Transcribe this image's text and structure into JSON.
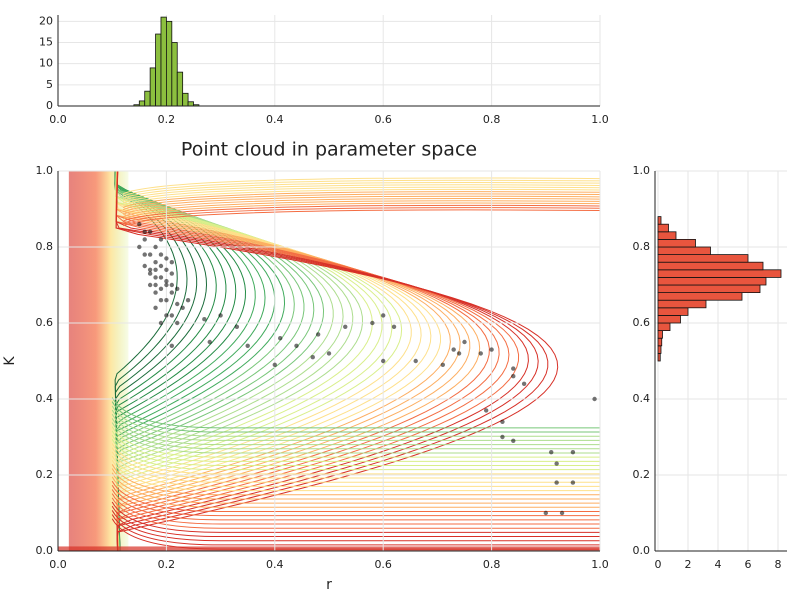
{
  "chart_data": [
    {
      "type": "histogram",
      "orientation": "vertical",
      "color": "#8cbf3f",
      "bins": [
        0.14,
        0.15,
        0.16,
        0.17,
        0.18,
        0.19,
        0.2,
        0.21,
        0.22,
        0.23,
        0.24,
        0.25,
        0.26
      ],
      "counts": [
        0.3,
        1.2,
        3.5,
        9,
        17,
        21,
        20,
        15,
        8,
        3,
        1,
        0.3
      ],
      "xlim": [
        0,
        1
      ],
      "xticks": [
        {
          "value": 0,
          "label": "0.0"
        },
        {
          "value": 0.2,
          "label": "0.2"
        },
        {
          "value": 0.4,
          "label": "0.4"
        },
        {
          "value": 0.6,
          "label": "0.6"
        },
        {
          "value": 0.8,
          "label": "0.8"
        },
        {
          "value": 1,
          "label": "1.0"
        }
      ],
      "ylim": [
        0,
        21.5
      ],
      "yticks": [
        0,
        5,
        10,
        15,
        20
      ],
      "grid": true
    },
    {
      "type": "scatter",
      "title": "Point cloud in parameter space",
      "xlabel": "r",
      "ylabel": "K",
      "color": "#000000",
      "x": [
        0.17,
        0.18,
        0.19,
        0.2,
        0.21,
        0.18,
        0.16,
        0.19,
        0.22,
        0.2,
        0.17,
        0.18,
        0.21,
        0.19,
        0.16,
        0.17,
        0.2,
        0.22,
        0.23,
        0.18,
        0.19,
        0.2,
        0.15,
        0.16,
        0.21,
        0.19,
        0.18,
        0.2,
        0.17,
        0.18,
        0.24,
        0.21,
        0.15,
        0.19,
        0.2,
        0.22,
        0.17,
        0.19,
        0.21,
        0.18,
        0.16,
        0.21,
        0.27,
        0.3,
        0.33,
        0.35,
        0.4,
        0.41,
        0.44,
        0.47,
        0.48,
        0.5,
        0.53,
        0.58,
        0.6,
        0.62,
        0.66,
        0.71,
        0.73,
        0.74,
        0.75,
        0.78,
        0.8,
        0.84,
        0.84,
        0.86,
        0.79,
        0.82,
        0.82,
        0.84,
        0.91,
        0.92,
        0.95,
        0.92,
        0.95,
        0.9,
        0.93,
        0.99,
        0.6,
        0.28
      ],
      "y": [
        0.74,
        0.76,
        0.72,
        0.7,
        0.68,
        0.8,
        0.78,
        0.66,
        0.65,
        0.74,
        0.7,
        0.68,
        0.73,
        0.78,
        0.82,
        0.84,
        0.62,
        0.6,
        0.64,
        0.72,
        0.75,
        0.77,
        0.8,
        0.75,
        0.7,
        0.69,
        0.64,
        0.66,
        0.78,
        0.74,
        0.66,
        0.62,
        0.86,
        0.82,
        0.71,
        0.69,
        0.73,
        0.6,
        0.76,
        0.7,
        0.84,
        0.54,
        0.61,
        0.62,
        0.59,
        0.54,
        0.49,
        0.56,
        0.54,
        0.51,
        0.57,
        0.52,
        0.59,
        0.6,
        0.62,
        0.59,
        0.5,
        0.49,
        0.53,
        0.52,
        0.55,
        0.52,
        0.53,
        0.46,
        0.48,
        0.44,
        0.37,
        0.34,
        0.3,
        0.29,
        0.26,
        0.23,
        0.26,
        0.18,
        0.18,
        0.1,
        0.1,
        0.4,
        0.5,
        0.55
      ],
      "xlim": [
        0,
        1
      ],
      "xticks": [
        {
          "value": 0,
          "label": "0.0"
        },
        {
          "value": 0.2,
          "label": "0.2"
        },
        {
          "value": 0.4,
          "label": "0.4"
        },
        {
          "value": 0.6,
          "label": "0.6"
        },
        {
          "value": 0.8,
          "label": "0.8"
        },
        {
          "value": 1,
          "label": "1.0"
        }
      ],
      "ylim": [
        0,
        1
      ],
      "yticks": [
        {
          "value": 0,
          "label": "0.0"
        },
        {
          "value": 0.2,
          "label": "0.2"
        },
        {
          "value": 0.4,
          "label": "0.4"
        },
        {
          "value": 0.6,
          "label": "0.6"
        },
        {
          "value": 0.8,
          "label": "0.8"
        },
        {
          "value": 1,
          "label": "1.0"
        }
      ],
      "grid": true
    },
    {
      "type": "histogram",
      "orientation": "horizontal",
      "color": "#e8553e",
      "bins": [
        0.5,
        0.52,
        0.54,
        0.56,
        0.58,
        0.6,
        0.62,
        0.64,
        0.66,
        0.68,
        0.7,
        0.72,
        0.74,
        0.76,
        0.78,
        0.8,
        0.82,
        0.84,
        0.86,
        0.88
      ],
      "counts": [
        0.15,
        0.2,
        0.25,
        0.3,
        0.8,
        1.5,
        2,
        3.2,
        5.6,
        6.8,
        7.2,
        8.2,
        7,
        6,
        3.5,
        2.5,
        1.2,
        0.7,
        0.2
      ],
      "xlim": [
        -0.2,
        8.6
      ],
      "xticks": [
        0,
        2,
        4,
        6,
        8
      ],
      "ylim": [
        0,
        1
      ],
      "yticks": [
        {
          "value": 0,
          "label": "0.0"
        },
        {
          "value": 0.2,
          "label": "0.2"
        },
        {
          "value": 0.4,
          "label": "0.4"
        },
        {
          "value": 0.6,
          "label": "0.6"
        },
        {
          "value": 0.8,
          "label": "0.8"
        },
        {
          "value": 1,
          "label": "1.0"
        }
      ],
      "grid": true
    }
  ]
}
